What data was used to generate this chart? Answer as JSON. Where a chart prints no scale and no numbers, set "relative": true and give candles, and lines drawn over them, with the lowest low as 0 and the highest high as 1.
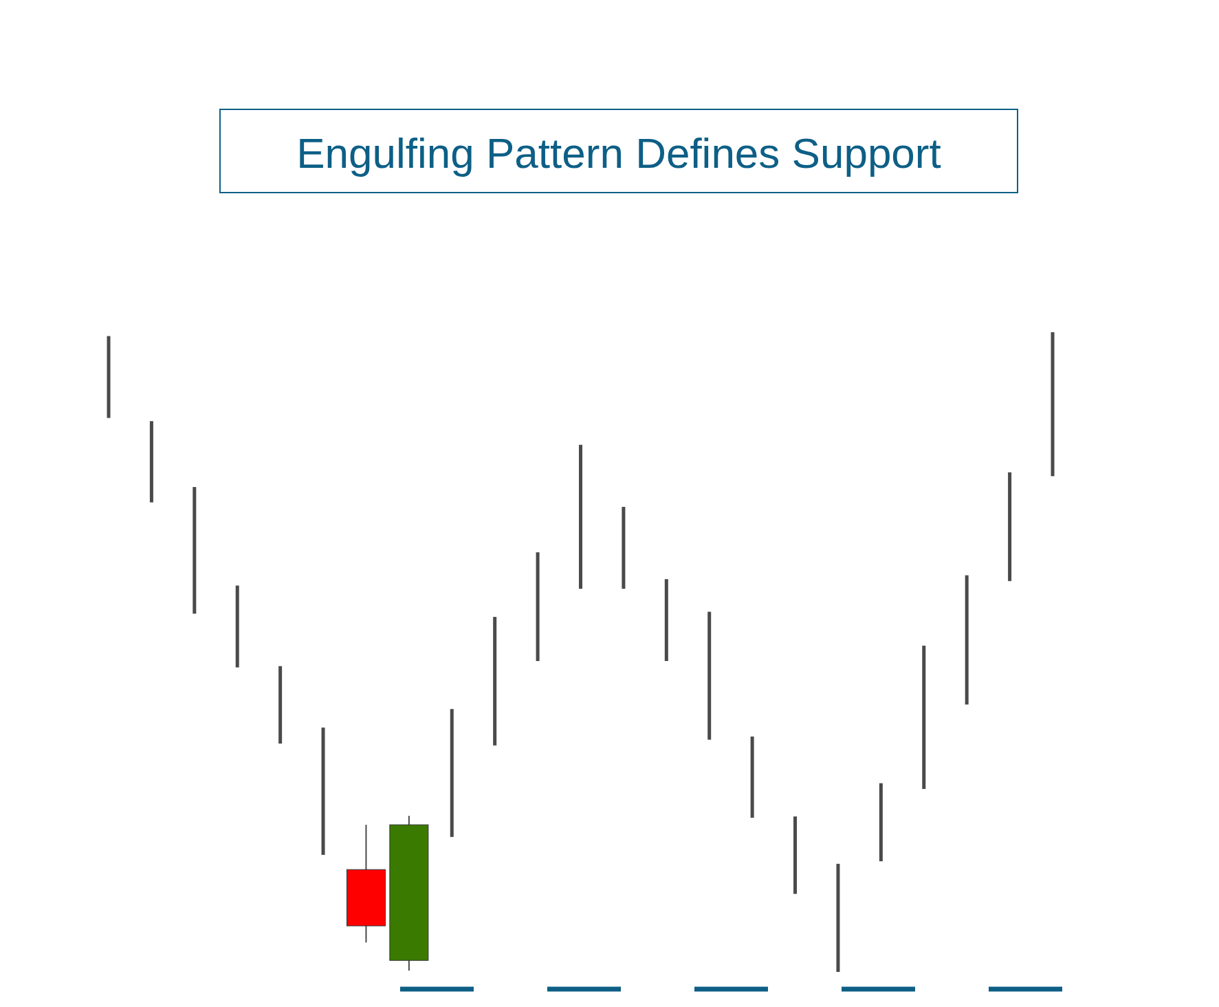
{
  "chart_data": {
    "type": "candlestick",
    "title": "Engulfing Pattern Defines Support",
    "relative": true,
    "categories": [
      null,
      null,
      null,
      null,
      null,
      null,
      null,
      null,
      null,
      null,
      null,
      null,
      null,
      null,
      null,
      null,
      null,
      null,
      null,
      null,
      null,
      null,
      null
    ],
    "ohlc": [
      [
        0.994,
        0.994,
        0.866,
        0.866
      ],
      [
        0.861,
        0.861,
        0.734,
        0.734
      ],
      [
        0.758,
        0.758,
        0.56,
        0.56
      ],
      [
        0.604,
        0.604,
        0.476,
        0.476
      ],
      [
        0.478,
        0.478,
        0.357,
        0.357
      ],
      [
        0.382,
        0.382,
        0.183,
        0.183
      ],
      [
        0.16,
        0.23,
        0.046,
        0.072
      ],
      [
        0.018,
        0.244,
        0.002,
        0.23
      ],
      [
        0.411,
        0.411,
        0.211,
        0.211
      ],
      [
        0.555,
        0.555,
        0.354,
        0.354
      ],
      [
        0.656,
        0.656,
        0.486,
        0.486
      ],
      [
        0.824,
        0.824,
        0.599,
        0.599
      ],
      [
        0.727,
        0.727,
        0.599,
        0.599
      ],
      [
        0.614,
        0.614,
        0.486,
        0.486
      ],
      [
        0.563,
        0.563,
        0.363,
        0.363
      ],
      [
        0.368,
        0.368,
        0.241,
        0.241
      ],
      [
        0.243,
        0.243,
        0.122,
        0.122
      ],
      [
        0.169,
        0.169,
        0,
        0
      ],
      [
        0.295,
        0.295,
        0.173,
        0.173
      ],
      [
        0.51,
        0.51,
        0.286,
        0.286
      ],
      [
        0.62,
        0.62,
        0.418,
        0.418
      ],
      [
        0.781,
        0.781,
        0.611,
        0.611
      ],
      [
        1,
        1,
        0.775,
        0.775
      ]
    ],
    "colors": [
      "#4a4a4a",
      "#4a4a4a",
      "#4a4a4a",
      "#4a4a4a",
      "#4a4a4a",
      "#4a4a4a",
      "#ff0000",
      "#3a7a00",
      "#4a4a4a",
      "#4a4a4a",
      "#4a4a4a",
      "#4a4a4a",
      "#4a4a4a",
      "#4a4a4a",
      "#4a4a4a",
      "#4a4a4a",
      "#4a4a4a",
      "#4a4a4a",
      "#4a4a4a",
      "#4a4a4a",
      "#4a4a4a",
      "#4a4a4a",
      "#4a4a4a"
    ],
    "ref_lines": [
      {
        "axis": "y",
        "value": -0.027,
        "color": "#0d5f86",
        "line_style": "dashed"
      }
    ]
  }
}
